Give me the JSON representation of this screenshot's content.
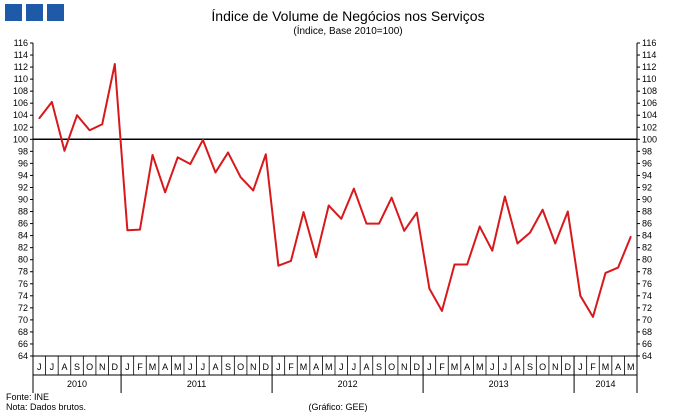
{
  "chart_data": {
    "type": "line",
    "title": "Índice de Volume de Negócios nos Serviços",
    "subtitle": "(Índice, Base 2010=100)",
    "xlabel": "",
    "ylabel": "",
    "ylim": [
      64,
      116
    ],
    "ytick_step": 2,
    "reference_line": 100,
    "grid": false,
    "months": [
      "J",
      "J",
      "A",
      "S",
      "O",
      "N",
      "D",
      "J",
      "F",
      "M",
      "A",
      "M",
      "J",
      "J",
      "A",
      "S",
      "O",
      "N",
      "D",
      "J",
      "F",
      "M",
      "A",
      "M",
      "J",
      "J",
      "A",
      "S",
      "O",
      "N",
      "D",
      "J",
      "F",
      "M",
      "A",
      "M",
      "J",
      "J",
      "A",
      "S",
      "O",
      "N",
      "D",
      "J",
      "F",
      "M",
      "A",
      "M"
    ],
    "years": [
      {
        "label": "2010",
        "count": 7
      },
      {
        "label": "2011",
        "count": 12
      },
      {
        "label": "2012",
        "count": 12
      },
      {
        "label": "2013",
        "count": 12
      },
      {
        "label": "2014",
        "count": 5
      }
    ],
    "series": [
      {
        "color": "#d7191c",
        "values": [
          103.5,
          106.2,
          98.1,
          104.0,
          101.5,
          102.5,
          112.5,
          84.9,
          85.0,
          97.4,
          91.2,
          97.0,
          95.9,
          99.9,
          94.5,
          97.8,
          93.7,
          91.5,
          97.5,
          79.0,
          79.8,
          87.9,
          80.4,
          89.0,
          86.8,
          91.8,
          86.0,
          86.0,
          90.3,
          84.8,
          87.8,
          75.2,
          71.5,
          79.2,
          79.2,
          85.5,
          81.5,
          90.5,
          82.7,
          84.5,
          88.3,
          82.7,
          88.0,
          74.0,
          70.5,
          77.8,
          78.7,
          83.8
        ]
      }
    ]
  },
  "footer": {
    "source": "Fonte: INE",
    "note": "Nota: Dados brutos.",
    "credit": "(Gráfico: GEE)"
  },
  "colors": {
    "logo": "#1e5aa8",
    "series": "#d7191c",
    "reference": "#000000"
  }
}
